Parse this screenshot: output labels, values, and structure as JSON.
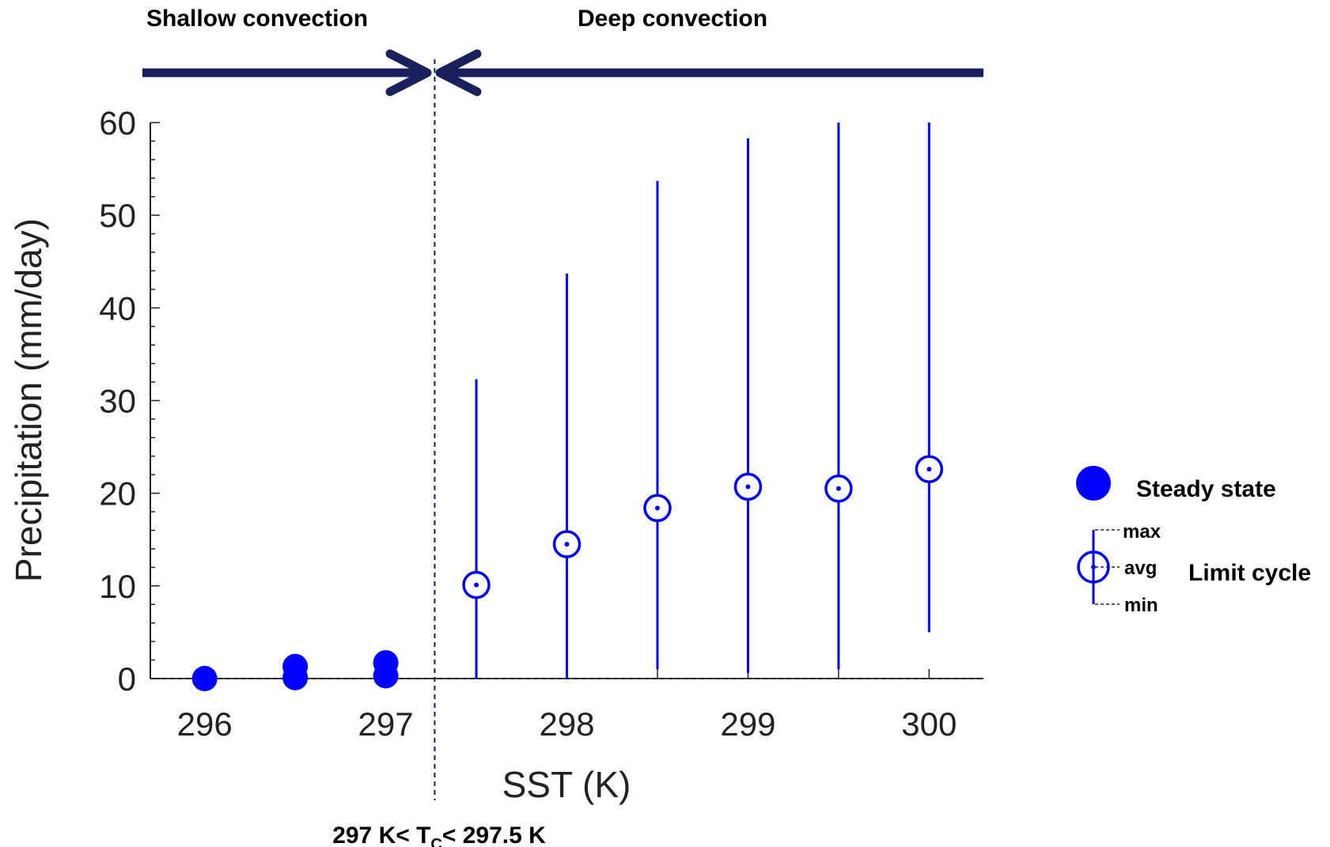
{
  "chart_data": {
    "type": "scatter",
    "xlabel": "SST (K)",
    "ylabel": "Precipitation (mm/day)",
    "xlim": [
      295.7,
      300.3
    ],
    "ylim": [
      0,
      60
    ],
    "x_ticks": [
      296,
      297,
      298,
      299,
      300
    ],
    "y_ticks": [
      0,
      10,
      20,
      30,
      40,
      50,
      60
    ],
    "grid": false,
    "legend_position": "right",
    "series": [
      {
        "name": "Steady state",
        "marker": "filled-circle",
        "color": "#0000ff",
        "points": [
          {
            "x": 296,
            "y": 0.0
          },
          {
            "x": 296.5,
            "y": 1.3
          },
          {
            "x": 296.5,
            "y": 0.1
          },
          {
            "x": 297,
            "y": 1.7
          },
          {
            "x": 297,
            "y": 0.3
          }
        ]
      },
      {
        "name": "Limit cycle",
        "marker": "open-circle-with-range",
        "color": "#0000ff",
        "points": [
          {
            "x": 297.5,
            "avg": 10.1,
            "min": 0.0,
            "max": 32.3
          },
          {
            "x": 298,
            "avg": 14.5,
            "min": 0.0,
            "max": 43.7
          },
          {
            "x": 298.5,
            "avg": 18.4,
            "min": 1.0,
            "max": 53.7
          },
          {
            "x": 299,
            "avg": 20.7,
            "min": 0.6,
            "max": 58.3
          },
          {
            "x": 299.5,
            "avg": 20.5,
            "min": 1.0,
            "max": 60.0
          },
          {
            "x": 300,
            "avg": 22.6,
            "min": 5.0,
            "max": 60.0
          }
        ]
      }
    ],
    "regions": {
      "shallow_label": "Shallow convection",
      "deep_label": "Deep convection",
      "arrow_color": "#1a1f5e",
      "threshold_x": 297.27,
      "threshold_text": {
        "pre": "297 K< T",
        "sub": "C",
        "post": "< 297.5 K"
      }
    },
    "legend": {
      "steady_label": "Steady state",
      "limit_label": "Limit cycle",
      "max_label": "max",
      "avg_label": "avg",
      "min_label": "min"
    }
  }
}
